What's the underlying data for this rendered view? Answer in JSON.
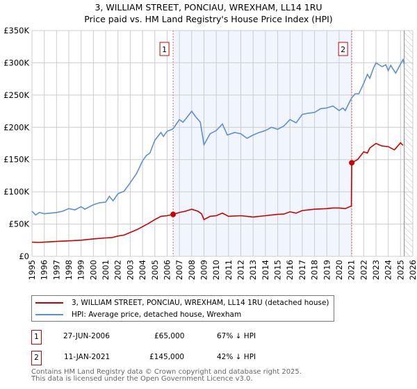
{
  "chart_data": {
    "type": "line",
    "title": "3, WILLIAM STREET, PONCIAU, WREXHAM, LL14 1RU",
    "subtitle": "Price paid vs. HM Land Registry's House Price Index (HPI)",
    "xlim": [
      1995,
      2026
    ],
    "ylim": [
      0,
      350000
    ],
    "yticks": [
      {
        "v": 0,
        "label": "£0"
      },
      {
        "v": 50000,
        "label": "£50K"
      },
      {
        "v": 100000,
        "label": "£100K"
      },
      {
        "v": 150000,
        "label": "£150K"
      },
      {
        "v": 200000,
        "label": "£200K"
      },
      {
        "v": 250000,
        "label": "£250K"
      },
      {
        "v": 300000,
        "label": "£300K"
      },
      {
        "v": 350000,
        "label": "£350K"
      }
    ],
    "xticks": [
      "1995",
      "1996",
      "1997",
      "1998",
      "1999",
      "2000",
      "2001",
      "2002",
      "2003",
      "2004",
      "2005",
      "2006",
      "2007",
      "2008",
      "2009",
      "2010",
      "2011",
      "2012",
      "2013",
      "2014",
      "2015",
      "2016",
      "2017",
      "2018",
      "2019",
      "2020",
      "2021",
      "2022",
      "2023",
      "2024",
      "2025",
      "2026"
    ],
    "grid": true,
    "shaded_range": [
      2006.49,
      2021.03
    ],
    "forecast_from": 2025.3,
    "series": [
      {
        "name": "3, WILLIAM STREET, PONCIAU, WREXHAM, LL14 1RU (detached house)",
        "color": "#cc0000",
        "points": [
          [
            1995,
            22000
          ],
          [
            1995.5,
            21500
          ],
          [
            1996,
            22000
          ],
          [
            1997,
            23000
          ],
          [
            1998,
            24000
          ],
          [
            1999,
            25000
          ],
          [
            2000,
            27000
          ],
          [
            2001,
            28500
          ],
          [
            2001.5,
            29000
          ],
          [
            2002,
            31500
          ],
          [
            2002.5,
            33000
          ],
          [
            2003,
            37000
          ],
          [
            2003.5,
            41000
          ],
          [
            2004,
            46000
          ],
          [
            2004.5,
            51000
          ],
          [
            2005,
            57000
          ],
          [
            2005.5,
            62000
          ],
          [
            2006,
            63000
          ],
          [
            2006.49,
            65000
          ],
          [
            2007,
            68000
          ],
          [
            2007.5,
            70000
          ],
          [
            2008,
            73000
          ],
          [
            2008.5,
            70000
          ],
          [
            2008.8,
            66000
          ],
          [
            2009,
            57000
          ],
          [
            2009.5,
            62000
          ],
          [
            2010,
            63000
          ],
          [
            2010.5,
            67000
          ],
          [
            2011,
            62000
          ],
          [
            2012,
            63000
          ],
          [
            2013,
            61000
          ],
          [
            2014,
            63000
          ],
          [
            2015,
            65000
          ],
          [
            2015.5,
            65500
          ],
          [
            2016,
            69000
          ],
          [
            2016.5,
            67000
          ],
          [
            2017,
            71000
          ],
          [
            2018,
            73000
          ],
          [
            2019,
            74000
          ],
          [
            2019.5,
            75000
          ],
          [
            2020,
            75000
          ],
          [
            2020.5,
            74000
          ],
          [
            2021.0,
            78000
          ],
          [
            2021.03,
            145000
          ],
          [
            2021.5,
            150000
          ],
          [
            2022,
            162000
          ],
          [
            2022.3,
            160000
          ],
          [
            2022.5,
            168000
          ],
          [
            2023,
            175000
          ],
          [
            2023.5,
            171000
          ],
          [
            2024,
            170000
          ],
          [
            2024.5,
            165000
          ],
          [
            2025,
            176000
          ],
          [
            2025.2,
            172000
          ]
        ]
      },
      {
        "name": "HPI: Average price, detached house, Wrexham",
        "color": "#5b8fd4",
        "points": [
          [
            1995,
            70000
          ],
          [
            1995.3,
            64000
          ],
          [
            1995.6,
            68000
          ],
          [
            1996,
            66000
          ],
          [
            1997,
            68000
          ],
          [
            1997.5,
            70000
          ],
          [
            1998,
            74000
          ],
          [
            1998.5,
            72000
          ],
          [
            1999,
            77000
          ],
          [
            1999.3,
            73000
          ],
          [
            2000,
            80000
          ],
          [
            2000.5,
            83000
          ],
          [
            2001,
            84000
          ],
          [
            2001.3,
            93000
          ],
          [
            2001.6,
            86000
          ],
          [
            2002,
            97000
          ],
          [
            2002.5,
            101000
          ],
          [
            2003,
            114000
          ],
          [
            2003.5,
            128000
          ],
          [
            2004,
            148000
          ],
          [
            2004.3,
            156000
          ],
          [
            2004.6,
            160000
          ],
          [
            2005,
            180000
          ],
          [
            2005.5,
            192000
          ],
          [
            2005.7,
            186000
          ],
          [
            2006,
            194000
          ],
          [
            2006.3,
            196000
          ],
          [
            2006.5,
            198000
          ],
          [
            2007,
            212000
          ],
          [
            2007.3,
            208000
          ],
          [
            2007.6,
            215000
          ],
          [
            2008,
            225000
          ],
          [
            2008.3,
            217000
          ],
          [
            2008.7,
            208000
          ],
          [
            2009,
            173000
          ],
          [
            2009.5,
            190000
          ],
          [
            2010,
            195000
          ],
          [
            2010.5,
            205000
          ],
          [
            2010.9,
            188000
          ],
          [
            2011.5,
            192000
          ],
          [
            2012,
            190000
          ],
          [
            2012.5,
            183000
          ],
          [
            2013,
            188000
          ],
          [
            2013.5,
            192000
          ],
          [
            2014,
            195000
          ],
          [
            2014.5,
            200000
          ],
          [
            2015,
            197000
          ],
          [
            2015.5,
            202000
          ],
          [
            2016,
            212000
          ],
          [
            2016.5,
            207000
          ],
          [
            2017,
            220000
          ],
          [
            2017.5,
            222000
          ],
          [
            2018,
            223000
          ],
          [
            2018.5,
            229000
          ],
          [
            2019,
            230000
          ],
          [
            2019.5,
            233000
          ],
          [
            2020,
            226000
          ],
          [
            2020.3,
            230000
          ],
          [
            2020.5,
            226000
          ],
          [
            2021,
            245000
          ],
          [
            2021.3,
            252000
          ],
          [
            2021.6,
            252000
          ],
          [
            2022,
            268000
          ],
          [
            2022.3,
            282000
          ],
          [
            2022.5,
            276000
          ],
          [
            2022.8,
            292000
          ],
          [
            2023,
            300000
          ],
          [
            2023.5,
            294000
          ],
          [
            2023.8,
            297000
          ],
          [
            2024,
            288000
          ],
          [
            2024.2,
            296000
          ],
          [
            2024.6,
            284000
          ],
          [
            2025,
            298000
          ],
          [
            2025.2,
            305000
          ],
          [
            2025.3,
            298000
          ]
        ]
      }
    ],
    "annotations": [
      {
        "label": "1",
        "x": 2006.49,
        "y": 65000
      },
      {
        "label": "2",
        "x": 2021.03,
        "y": 145000
      }
    ]
  },
  "legend": {
    "red": "3, WILLIAM STREET, PONCIAU, WREXHAM, LL14 1RU (detached house)",
    "blue": "HPI: Average price, detached house, Wrexham"
  },
  "transactions": [
    {
      "num": "1",
      "date": "27-JUN-2006",
      "price": "£65,000",
      "hpi": "67% ↓ HPI"
    },
    {
      "num": "2",
      "date": "11-JAN-2021",
      "price": "£145,000",
      "hpi": "42% ↓ HPI"
    }
  ],
  "footer": {
    "line1": "Contains HM Land Registry data © Crown copyright and database right 2025.",
    "line2": "This data is licensed under the Open Government Licence v3.0."
  }
}
